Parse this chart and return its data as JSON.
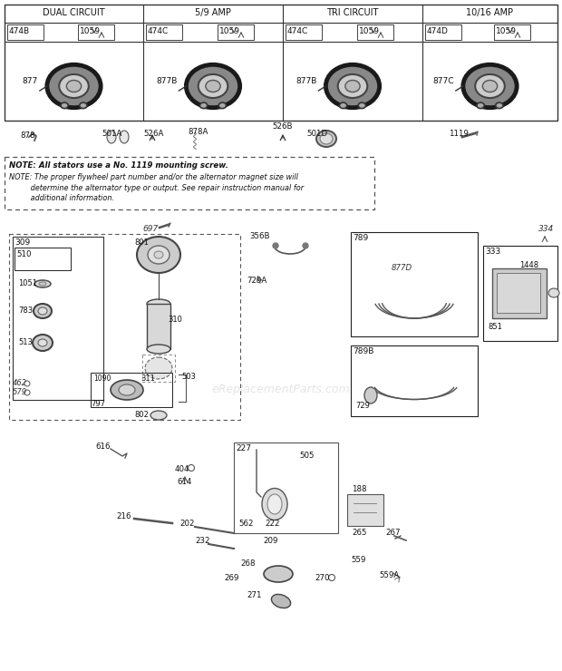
{
  "bg_color": "#ffffff",
  "watermark": "eReplacementParts.com",
  "top_table": {
    "headers": [
      "DUAL CIRCUIT",
      "5/9 AMP",
      "TRI CIRCUIT",
      "10/16 AMP"
    ],
    "col_labels": [
      [
        "474B",
        "1059",
        "877"
      ],
      [
        "474C",
        "1059",
        "877B"
      ],
      [
        "474C",
        "1059",
        "877B"
      ],
      [
        "474D",
        "1059",
        "877C"
      ]
    ]
  },
  "notes_line1": "NOTE: All stators use a No. 1119 mounting screw.",
  "notes_line2": "NOTE: The proper flywheel part number and/or the alternator magnet size will",
  "notes_line3": "         determine the alternator type or output. See repair instruction manual for",
  "notes_line4": "         additional information."
}
